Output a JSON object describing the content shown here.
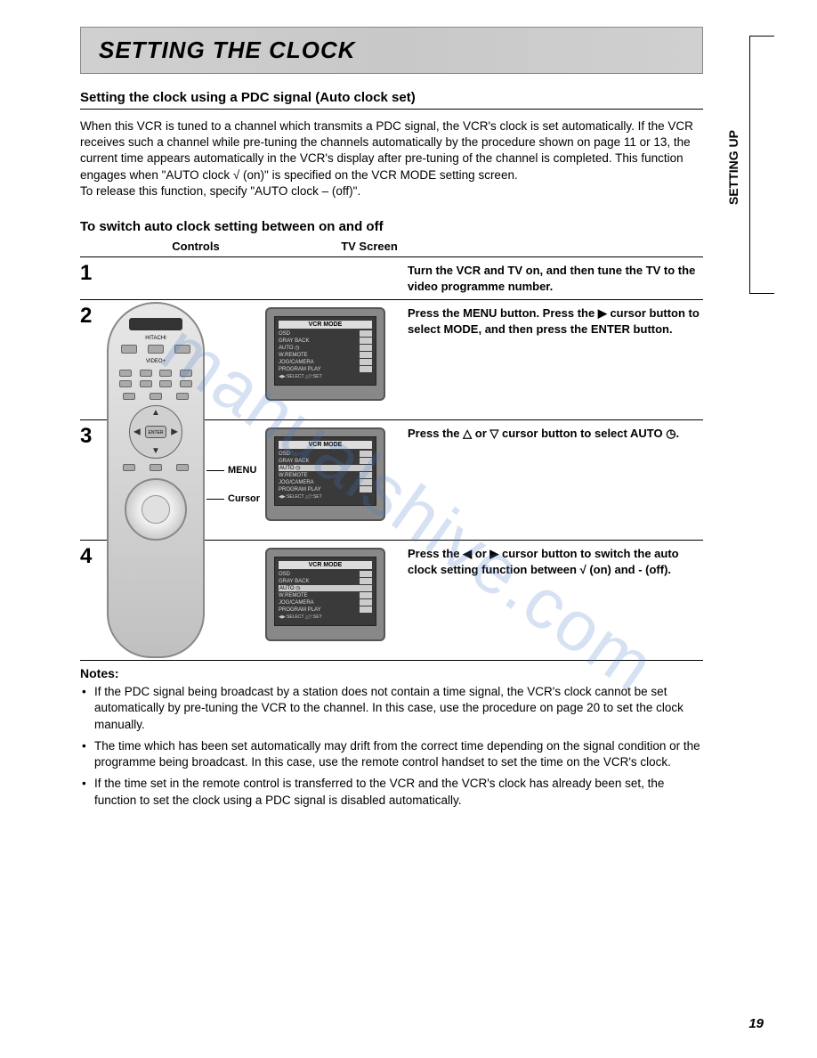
{
  "page": {
    "title": "SETTING THE CLOCK",
    "side_tab": "SETTING UP",
    "page_number": "19",
    "watermark": "manualshive.com"
  },
  "section": {
    "subtitle1": "Setting the clock using a PDC signal (Auto clock set)",
    "intro_p1": "When this VCR is tuned to a channel which transmits a PDC signal, the VCR's clock is set automatically. If the VCR receives such a channel while pre-tuning the channels automatically by the procedure shown on page 11 or 13, the current time appears automatically in the VCR's display after pre-tuning of the channel is completed. This function engages when \"AUTO clock √ (on)\" is specified on the VCR MODE setting screen.",
    "intro_p2": "To release this function, specify \"AUTO clock – (off)\".",
    "subtitle2": "To switch auto clock setting between on and off",
    "col_controls": "Controls",
    "col_tvscreen": "TV Screen"
  },
  "remote": {
    "brand": "HITACHI",
    "label_menu": "MENU",
    "label_cursor": "Cursor",
    "enter": "ENTER"
  },
  "tv_menu": {
    "title": "VCR MODE",
    "items": [
      "OSD",
      "GRAY BACK",
      "AUTO ◷",
      "W.REMOTE",
      "JOG/CAMERA",
      "PROGRAM PLAY"
    ],
    "footer": "◀▶:SELECT △▽:SET"
  },
  "steps": [
    {
      "num": "1",
      "text": "Turn the VCR and TV on, and then tune the TV to the video programme number.",
      "has_tv": false
    },
    {
      "num": "2",
      "text_parts": [
        "Press the MENU button. Press the ",
        "▶",
        " cursor button to select MODE, and then press the ENTER button."
      ],
      "has_tv": true,
      "highlight_idx": -1
    },
    {
      "num": "3",
      "text_parts": [
        "Press the ",
        "△",
        " or ",
        "▽",
        " cursor button to select AUTO ",
        "◷",
        "."
      ],
      "has_tv": true,
      "highlight_idx": 2
    },
    {
      "num": "4",
      "text_parts": [
        "Press the ",
        "◀",
        " or ",
        "▶",
        " cursor button to switch the auto clock setting function between √ (on) and - (off)."
      ],
      "has_tv": true,
      "highlight_idx": 2
    }
  ],
  "notes": {
    "title": "Notes:",
    "items": [
      "If the PDC signal being broadcast by a station does not contain a time signal, the VCR's clock cannot be set automatically by pre-tuning the VCR to the channel. In this case, use the procedure on page 20 to set the clock manually.",
      "The time which has been set automatically may drift from the correct time depending on the signal condition or the programme being broadcast. In this case, use the remote control handset to set the time on the VCR's clock.",
      "If the time set in the remote control is transferred to the VCR and the VCR's clock has already been set, the function to set the clock using a PDC signal is disabled automatically."
    ]
  }
}
